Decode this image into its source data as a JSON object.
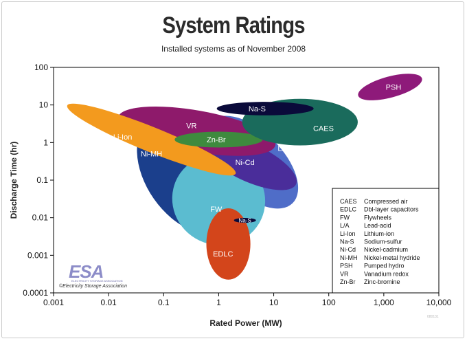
{
  "title": "System Ratings",
  "subtitle": "Installed systems as of November 2008",
  "footnote": "080131",
  "chart_data": {
    "type": "scatter",
    "title": "System Ratings",
    "subtitle": "Installed systems as of November 2008",
    "xlabel": "Rated Power (MW)",
    "ylabel": "Discharge Time (hr)",
    "xscale": "log",
    "yscale": "log",
    "xlim": [
      0.001,
      10000
    ],
    "ylim": [
      0.0001,
      100
    ],
    "xticks": [
      "0.001",
      "0.01",
      "0.1",
      "1",
      "10",
      "100",
      "1,000",
      "10,000"
    ],
    "yticks": [
      "0.0001",
      "0.001",
      "0.01",
      "0.1",
      "1",
      "10",
      "100"
    ],
    "grid": false,
    "legend_position": "bottom-right",
    "legend": [
      {
        "abbr": "CAES",
        "name": "Compressed air"
      },
      {
        "abbr": "EDLC",
        "name": "Dbl-layer capacitors"
      },
      {
        "abbr": "FW",
        "name": "Flywheels"
      },
      {
        "abbr": "L/A",
        "name": "Lead-acid"
      },
      {
        "abbr": "Li-Ion",
        "name": "Lithium-ion"
      },
      {
        "abbr": "Na-S",
        "name": "Sodium-sulfur"
      },
      {
        "abbr": "Ni-Cd",
        "name": "Nickel-cadmium"
      },
      {
        "abbr": "Ni-MH",
        "name": "Nickel-metal hydride"
      },
      {
        "abbr": "PSH",
        "name": "Pumped hydro"
      },
      {
        "abbr": "VR",
        "name": "Vanadium redox"
      },
      {
        "abbr": "Zn-Br",
        "name": "Zinc-bromine"
      }
    ],
    "regions": [
      {
        "label": "Ni-MH",
        "color": "#1b3f8c",
        "center": [
          0.3,
          0.15
        ],
        "rx": 0.8,
        "ry": 1.8,
        "rot": -35,
        "label_at": [
          0.06,
          0.5
        ]
      },
      {
        "label": "L/A",
        "color": "#4f6dc8",
        "center": [
          4,
          0.3
        ],
        "rx": 1.05,
        "ry": 0.82,
        "rot": 45,
        "label_at": [
          15,
          0.7
        ]
      },
      {
        "label": "FW",
        "color": "#5bbcd0",
        "center": [
          1,
          0.03
        ],
        "rx": 0.85,
        "ry": 1.2,
        "rot": 25,
        "label_at": [
          0.9,
          0.017
        ]
      },
      {
        "label": "Ni-Cd",
        "color": "#4a2d9a",
        "center": [
          3.5,
          0.3
        ],
        "rx": 0.95,
        "ry": 0.5,
        "rot": 25,
        "label_at": [
          3,
          0.3
        ]
      },
      {
        "label": "VR",
        "color": "#8e1a6b",
        "center": [
          0.4,
          2
        ],
        "rx": 1.45,
        "ry": 0.55,
        "rot": 10,
        "label_at": [
          0.32,
          2.8
        ]
      },
      {
        "label": "Li-Ion",
        "color": "#f39a1e",
        "center": [
          0.06,
          1.2
        ],
        "rx": 1.65,
        "ry": 0.33,
        "rot": 22,
        "label_at": [
          0.018,
          1.4
        ]
      },
      {
        "label": "Zn-Br",
        "color": "#3e8a3e",
        "center": [
          1,
          1.2
        ],
        "rx": 0.8,
        "ry": 0.21,
        "rot": 0,
        "label_at": [
          0.9,
          1.2
        ]
      },
      {
        "label": "CAES",
        "color": "#1a6b5c",
        "center": [
          30,
          3.5
        ],
        "rx": 1.05,
        "ry": 0.62,
        "rot": 0,
        "label_at": [
          80,
          2.4
        ]
      },
      {
        "label": "Na-S",
        "color": "#0a0a3a",
        "center": [
          7,
          8
        ],
        "rx": 0.88,
        "ry": 0.18,
        "rot": 0,
        "label_at": [
          5,
          8
        ]
      },
      {
        "label": "PSH",
        "color": "#8e1a7a",
        "center": [
          1300,
          30
        ],
        "rx": 0.6,
        "ry": 0.28,
        "rot": -15,
        "label_at": [
          1500,
          30
        ]
      },
      {
        "label": "EDLC",
        "color": "#d3451b",
        "center": [
          1.5,
          0.002
        ],
        "rx": 0.4,
        "ry": 0.95,
        "rot": 0,
        "label_at": [
          1.2,
          0.0011
        ]
      },
      {
        "label": "Na-S",
        "color": "#0a0a3a",
        "center": [
          3,
          0.0085
        ],
        "rx": 0.2,
        "ry": 0.065,
        "rot": 0,
        "label_at": [
          3,
          0.0085
        ]
      }
    ]
  },
  "logo": {
    "text": "ESA",
    "tagline": "ELECTRICITY STORAGE ASSOCIATION",
    "caption": "©Electricity Storage Association"
  }
}
